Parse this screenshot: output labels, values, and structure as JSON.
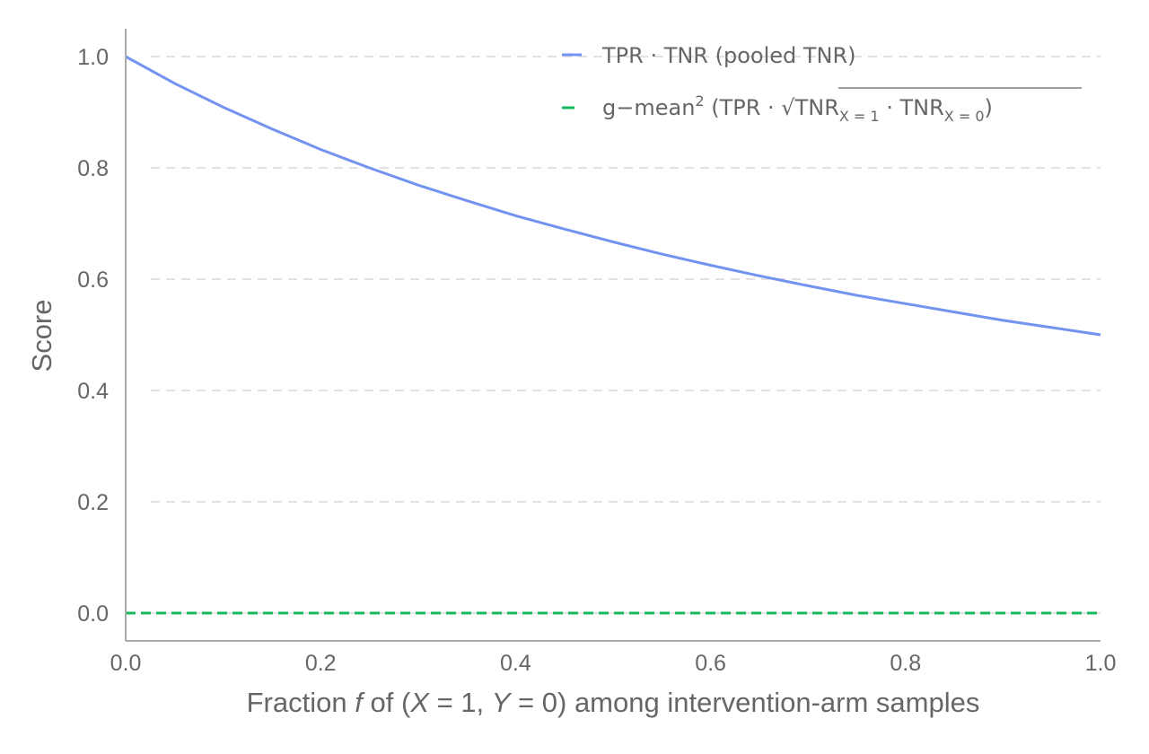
{
  "chart_data": {
    "type": "line",
    "title": "",
    "xlabel": {
      "pre": "Fraction ",
      "f": "f",
      "mid": " of (",
      "x_var": "X",
      "eq1": " = 1, ",
      "y_var": "Y",
      "eq2": " = 0) among intervention-arm samples"
    },
    "ylabel": "Score",
    "xlim": [
      0.0,
      1.0
    ],
    "ylim": [
      -0.05,
      1.05
    ],
    "x_ticks": [
      0.0,
      0.2,
      0.4,
      0.6,
      0.8,
      1.0
    ],
    "x_tick_labels": [
      "0.0",
      "0.2",
      "0.4",
      "0.6",
      "0.8",
      "1.0"
    ],
    "y_ticks": [
      0.0,
      0.2,
      0.4,
      0.6,
      0.8,
      1.0
    ],
    "y_tick_labels": [
      "0.0",
      "0.2",
      "0.4",
      "0.6",
      "0.8",
      "1.0"
    ],
    "grid": "horizontal dashed",
    "legend_position": "top-right",
    "series": [
      {
        "name": "TPR · TNR (pooled TNR)",
        "color": "#7393f0",
        "style": "solid",
        "x": [
          0.0,
          0.05,
          0.1,
          0.15,
          0.2,
          0.25,
          0.3,
          0.35,
          0.4,
          0.45,
          0.5,
          0.55,
          0.6,
          0.65,
          0.7,
          0.75,
          0.8,
          0.85,
          0.9,
          0.95,
          1.0
        ],
        "y": [
          1.0,
          0.952,
          0.909,
          0.87,
          0.833,
          0.8,
          0.769,
          0.741,
          0.714,
          0.69,
          0.667,
          0.645,
          0.625,
          0.606,
          0.588,
          0.571,
          0.556,
          0.541,
          0.526,
          0.513,
          0.5
        ]
      },
      {
        "name": "g−mean² (TPR · √(TNR_{X=1} · TNR_{X=0}))",
        "color": "#1ab85e",
        "style": "dashed",
        "x": [
          0.0,
          1.0
        ],
        "y": [
          0.0,
          0.0
        ]
      }
    ],
    "legend": {
      "entry1": "TPR · TNR (pooled TNR)",
      "entry2": {
        "g": "g−mean",
        "sup": "2",
        "open": " (TPR · ",
        "sqrt": "√",
        "tnr_a": "TNR",
        "sub_a": "X = 1",
        "dot": " · ",
        "tnr_b": "TNR",
        "sub_b": "X = 0",
        "close": ")"
      }
    }
  }
}
